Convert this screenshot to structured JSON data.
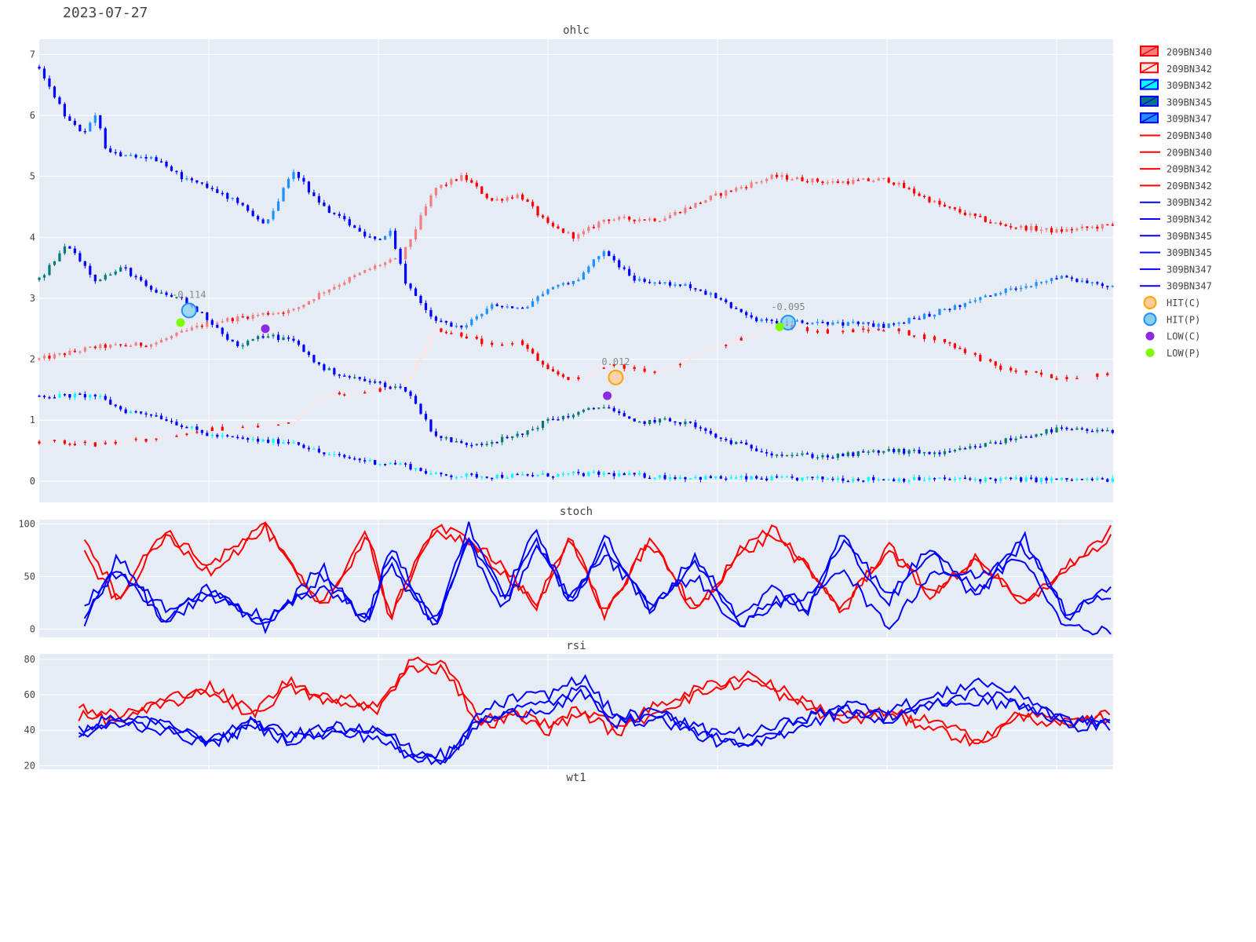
{
  "page": {
    "date_title": "2023-07-27"
  },
  "colors": {
    "plot_bg": "#e5ecf6",
    "grid": "#ffffff",
    "red": "#ff0000",
    "blue": "#0000ff",
    "cyan": "#00ffff",
    "teal": "#007a7a",
    "dodger": "#1e90ff",
    "salmon": "#f08080"
  },
  "legend": {
    "items": [
      {
        "label": "209BN340",
        "kind": "candle",
        "color": "#ff0000",
        "fill": "#f08080"
      },
      {
        "label": "209BN342",
        "kind": "candle",
        "color": "#ff0000",
        "fill": "#ffe4e1"
      },
      {
        "label": "309BN342",
        "kind": "candle",
        "color": "#0000ff",
        "fill": "#00ffff"
      },
      {
        "label": "309BN345",
        "kind": "candle",
        "color": "#0000ff",
        "fill": "#007a7a"
      },
      {
        "label": "309BN347",
        "kind": "candle",
        "color": "#0000ff",
        "fill": "#1e90ff"
      },
      {
        "label": "209BN340",
        "kind": "line",
        "color": "#ff0000"
      },
      {
        "label": "209BN340",
        "kind": "line",
        "color": "#ff0000"
      },
      {
        "label": "209BN342",
        "kind": "line",
        "color": "#ff0000"
      },
      {
        "label": "209BN342",
        "kind": "line",
        "color": "#ff0000"
      },
      {
        "label": "309BN342",
        "kind": "line",
        "color": "#0000ff"
      },
      {
        "label": "309BN342",
        "kind": "line",
        "color": "#0000ff"
      },
      {
        "label": "309BN345",
        "kind": "line",
        "color": "#0000ff"
      },
      {
        "label": "309BN345",
        "kind": "line",
        "color": "#0000ff"
      },
      {
        "label": "309BN347",
        "kind": "line",
        "color": "#0000ff"
      },
      {
        "label": "309BN347",
        "kind": "line",
        "color": "#0000ff"
      },
      {
        "label": "HIT(C)",
        "kind": "marker",
        "color": "#ffa500",
        "fill": "#ffcc99"
      },
      {
        "label": "HIT(P)",
        "kind": "marker",
        "color": "#1e90ff",
        "fill": "#87ceeb"
      },
      {
        "label": "LOW(C)",
        "kind": "dot",
        "color": "#8a2be2"
      },
      {
        "label": "LOW(P)",
        "kind": "dot",
        "color": "#7cfc00"
      }
    ]
  },
  "chart_data": [
    {
      "type": "ohlc",
      "title": "ohlc",
      "ylim": [
        -0.35,
        7.25
      ],
      "yticks": [
        "0",
        "1",
        "2",
        "3",
        "4",
        "5",
        "6",
        "7"
      ],
      "x_range": [
        0,
        190
      ],
      "x_gridlines": [
        30,
        60,
        90,
        120,
        150,
        180
      ],
      "series": [
        {
          "name": "209BN340",
          "color": "#ff0000",
          "fill": "#f08080",
          "x": [
            0,
            10,
            20,
            30,
            40,
            45,
            50,
            60,
            64,
            70,
            75,
            80,
            85,
            90,
            95,
            100,
            110,
            120,
            130,
            140,
            150,
            160,
            170,
            180,
            190
          ],
          "close": [
            2.0,
            2.2,
            2.25,
            2.6,
            2.75,
            2.8,
            3.1,
            3.55,
            3.65,
            4.8,
            5.0,
            4.6,
            4.7,
            4.2,
            4.0,
            4.3,
            4.3,
            4.7,
            5.0,
            4.9,
            4.95,
            4.5,
            4.2,
            4.1,
            4.2
          ]
        },
        {
          "name": "209BN342",
          "color": "#ff0000",
          "fill": "#ffe4e1",
          "x": [
            0,
            10,
            20,
            30,
            40,
            45,
            50,
            60,
            64,
            70,
            75,
            80,
            85,
            90,
            95,
            100,
            110,
            120,
            130,
            140,
            150,
            160,
            170,
            180,
            190
          ],
          "close": [
            0.65,
            0.6,
            0.7,
            0.85,
            0.9,
            1.0,
            1.4,
            1.5,
            1.55,
            2.5,
            2.4,
            2.2,
            2.3,
            1.8,
            1.65,
            1.9,
            1.8,
            2.2,
            2.55,
            2.45,
            2.5,
            2.3,
            1.85,
            1.7,
            1.75
          ]
        },
        {
          "name": "309BN342",
          "color": "#0000ff",
          "fill": "#00ffff",
          "x": [
            0,
            10,
            15,
            20,
            30,
            40,
            45,
            50,
            60,
            64,
            70,
            80,
            90,
            100,
            110,
            120,
            130,
            140,
            150,
            160,
            170,
            180,
            190
          ],
          "close": [
            1.4,
            1.4,
            1.15,
            1.1,
            0.75,
            0.65,
            0.65,
            0.45,
            0.3,
            0.28,
            0.1,
            0.08,
            0.1,
            0.12,
            0.07,
            0.05,
            0.04,
            0.04,
            0.03,
            0.03,
            0.03,
            0.02,
            0.02
          ]
        },
        {
          "name": "309BN345",
          "color": "#0000ff",
          "fill": "#007a7a",
          "x": [
            0,
            5,
            10,
            15,
            20,
            25,
            30,
            35,
            40,
            45,
            50,
            55,
            60,
            65,
            70,
            75,
            80,
            85,
            90,
            95,
            100,
            105,
            110,
            115,
            120,
            130,
            140,
            150,
            160,
            170,
            180,
            190
          ],
          "close": [
            3.3,
            3.9,
            3.3,
            3.5,
            3.1,
            3.0,
            2.65,
            2.2,
            2.4,
            2.3,
            1.85,
            1.7,
            1.6,
            1.5,
            0.75,
            0.6,
            0.65,
            0.75,
            1.0,
            1.1,
            1.25,
            0.95,
            1.0,
            0.95,
            0.7,
            0.45,
            0.4,
            0.5,
            0.45,
            0.65,
            0.85,
            0.8
          ]
        },
        {
          "name": "309BN347",
          "color": "#0000ff",
          "fill": "#1e90ff",
          "x": [
            0,
            5,
            8,
            10,
            12,
            15,
            20,
            25,
            30,
            35,
            40,
            45,
            50,
            55,
            60,
            62,
            65,
            70,
            75,
            80,
            85,
            90,
            95,
            100,
            105,
            110,
            115,
            120,
            125,
            130,
            140,
            150,
            160,
            170,
            180,
            190
          ],
          "close": [
            6.8,
            5.9,
            5.7,
            6.0,
            5.4,
            5.35,
            5.3,
            5.0,
            4.8,
            4.6,
            4.2,
            5.1,
            4.5,
            4.2,
            3.9,
            4.1,
            3.2,
            2.65,
            2.5,
            2.9,
            2.8,
            3.15,
            3.3,
            3.8,
            3.3,
            3.25,
            3.2,
            3.0,
            2.7,
            2.6,
            2.6,
            2.55,
            2.8,
            3.1,
            3.35,
            3.2
          ]
        }
      ],
      "markers": [
        {
          "kind": "HIT(P)",
          "x": 26.5,
          "y": 2.8,
          "label": "-0.114"
        },
        {
          "kind": "LOW(P)",
          "x": 25,
          "y": 2.6,
          "label": ""
        },
        {
          "kind": "LOW(C)",
          "x": 40,
          "y": 2.5,
          "label": ""
        },
        {
          "kind": "HIT(C)",
          "x": 102,
          "y": 1.7,
          "label": "0.012"
        },
        {
          "kind": "LOW(C)",
          "x": 100.5,
          "y": 1.4,
          "label": ""
        },
        {
          "kind": "HIT(P)",
          "x": 132.5,
          "y": 2.6,
          "label": "-0.095"
        },
        {
          "kind": "LOW(P)",
          "x": 131,
          "y": 2.53,
          "label": ""
        }
      ]
    },
    {
      "type": "line",
      "title": "stoch",
      "ylim": [
        -8,
        104
      ],
      "yticks": [
        "0",
        "50",
        "100"
      ],
      "x_range": [
        0,
        190
      ],
      "x_gridlines": [
        30,
        60,
        90,
        120,
        150,
        180
      ],
      "series": [
        {
          "name": "209BN340",
          "color": "#ff0000",
          "x": [
            8,
            14,
            22,
            30,
            40,
            50,
            58,
            62,
            70,
            76,
            82,
            88,
            94,
            100,
            108,
            116,
            124,
            130,
            136,
            142,
            150,
            158,
            166,
            174,
            182,
            190
          ],
          "values": [
            88,
            30,
            95,
            60,
            98,
            20,
            95,
            10,
            98,
            85,
            60,
            20,
            90,
            10,
            88,
            15,
            75,
            95,
            60,
            15,
            80,
            30,
            70,
            20,
            60,
            95
          ]
        },
        {
          "name": "209BN342",
          "color": "#ff0000",
          "x": [
            8,
            14,
            22,
            30,
            40,
            50,
            58,
            62,
            70,
            76,
            82,
            88,
            94,
            100,
            108,
            116,
            124,
            130,
            136,
            142,
            150,
            158,
            166,
            174,
            182,
            190
          ],
          "values": [
            70,
            25,
            88,
            55,
            95,
            18,
            90,
            12,
            96,
            80,
            55,
            25,
            85,
            15,
            82,
            20,
            70,
            90,
            55,
            20,
            75,
            35,
            65,
            25,
            55,
            90
          ]
        },
        {
          "name": "309BN342",
          "color": "#0000ff",
          "x": [
            8,
            14,
            22,
            30,
            40,
            50,
            58,
            62,
            70,
            76,
            82,
            88,
            94,
            100,
            108,
            116,
            124,
            130,
            136,
            142,
            150,
            158,
            166,
            174,
            182,
            190
          ],
          "values": [
            8,
            70,
            5,
            40,
            2,
            60,
            5,
            80,
            2,
            100,
            30,
            95,
            20,
            90,
            15,
            70,
            10,
            40,
            15,
            95,
            30,
            80,
            35,
            90,
            10,
            45
          ]
        },
        {
          "name": "309BN345",
          "color": "#0000ff",
          "x": [
            8,
            14,
            22,
            30,
            40,
            50,
            58,
            62,
            70,
            76,
            82,
            88,
            94,
            100,
            108,
            116,
            124,
            130,
            136,
            142,
            150,
            158,
            166,
            174,
            182,
            190
          ],
          "values": [
            15,
            60,
            10,
            30,
            5,
            50,
            8,
            70,
            5,
            90,
            25,
            85,
            25,
            80,
            20,
            60,
            5,
            30,
            20,
            85,
            25,
            70,
            30,
            80,
            15,
            35
          ]
        },
        {
          "name": "309BN347",
          "color": "#0000ff",
          "x": [
            8,
            14,
            22,
            30,
            40,
            50,
            58,
            62,
            70,
            76,
            82,
            88,
            94,
            100,
            108,
            116,
            124,
            130,
            136,
            142,
            150,
            158,
            166,
            174,
            182,
            190
          ],
          "values": [
            25,
            55,
            20,
            35,
            10,
            40,
            12,
            60,
            3,
            80,
            20,
            75,
            30,
            70,
            25,
            50,
            0,
            25,
            30,
            60,
            0,
            55,
            50,
            70,
            0,
            0
          ]
        }
      ]
    },
    {
      "type": "line",
      "title": "rsi",
      "ylim": [
        18,
        83
      ],
      "yticks": [
        "20",
        "40",
        "60",
        "80"
      ],
      "x_range": [
        0,
        190
      ],
      "x_gridlines": [
        30,
        60,
        90,
        120,
        150,
        180
      ],
      "series": [
        {
          "name": "209BN340",
          "color": "#ff0000",
          "x": [
            7,
            14,
            22,
            30,
            38,
            44,
            52,
            60,
            66,
            72,
            78,
            84,
            90,
            96,
            102,
            110,
            118,
            126,
            134,
            142,
            150,
            158,
            166,
            174,
            182,
            190
          ],
          "values": [
            53,
            48,
            57,
            65,
            50,
            68,
            58,
            55,
            80,
            78,
            45,
            50,
            44,
            52,
            42,
            55,
            65,
            72,
            58,
            48,
            50,
            45,
            35,
            50,
            44,
            52
          ]
        },
        {
          "name": "209BN342",
          "color": "#ff0000",
          "x": [
            7,
            14,
            22,
            30,
            38,
            44,
            52,
            60,
            66,
            72,
            78,
            84,
            90,
            96,
            102,
            110,
            118,
            126,
            134,
            142,
            150,
            158,
            166,
            174,
            182,
            190
          ],
          "values": [
            48,
            45,
            54,
            62,
            48,
            64,
            55,
            52,
            76,
            74,
            42,
            48,
            40,
            50,
            38,
            52,
            62,
            68,
            55,
            45,
            48,
            42,
            32,
            48,
            42,
            48
          ]
        },
        {
          "name": "309BN342",
          "color": "#0000ff",
          "x": [
            7,
            14,
            22,
            30,
            38,
            44,
            52,
            60,
            66,
            72,
            78,
            84,
            90,
            96,
            102,
            110,
            118,
            126,
            134,
            142,
            150,
            158,
            166,
            174,
            182,
            190
          ],
          "values": [
            40,
            48,
            42,
            35,
            45,
            36,
            42,
            40,
            25,
            22,
            50,
            58,
            60,
            70,
            48,
            50,
            38,
            32,
            45,
            55,
            52,
            58,
            68,
            60,
            45,
            45
          ]
        },
        {
          "name": "309BN345",
          "color": "#0000ff",
          "x": [
            7,
            14,
            22,
            30,
            38,
            44,
            52,
            60,
            66,
            72,
            78,
            84,
            90,
            96,
            102,
            110,
            118,
            126,
            134,
            142,
            150,
            158,
            166,
            174,
            182,
            190
          ],
          "values": [
            36,
            44,
            40,
            32,
            42,
            34,
            38,
            36,
            23,
            24,
            46,
            52,
            55,
            64,
            44,
            46,
            35,
            30,
            42,
            50,
            48,
            54,
            62,
            55,
            42,
            43
          ]
        },
        {
          "name": "309BN347",
          "color": "#0000ff",
          "x": [
            7,
            14,
            22,
            30,
            38,
            44,
            52,
            60,
            66,
            72,
            78,
            84,
            90,
            96,
            102,
            110,
            118,
            126,
            134,
            142,
            150,
            158,
            166,
            174,
            182,
            190
          ],
          "values": [
            38,
            46,
            44,
            34,
            44,
            38,
            40,
            42,
            28,
            26,
            44,
            50,
            52,
            60,
            46,
            48,
            40,
            38,
            46,
            52,
            45,
            55,
            55,
            55,
            44,
            46
          ]
        }
      ]
    }
  ],
  "bottom_label": "wt1"
}
